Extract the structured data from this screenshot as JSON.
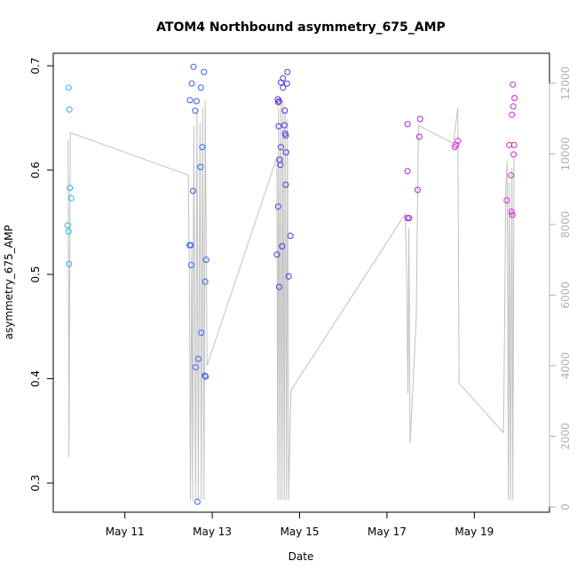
{
  "chart_data": {
    "type": "scatter",
    "title": "ATOM4 Northbound asymmetry_675_AMP",
    "xlabel": "Date",
    "ylabel": "asymmetry_675_AMP",
    "x_unit": "days (May 2024)",
    "xlim": [
      9.36,
      20.72
    ],
    "ylim": [
      0.272,
      0.712
    ],
    "y2lim": [
      -150,
      12850
    ],
    "x_ticks": [
      {
        "value": 11,
        "label": "May 11"
      },
      {
        "value": 13,
        "label": "May 13"
      },
      {
        "value": 15,
        "label": "May 15"
      },
      {
        "value": 17,
        "label": "May 17"
      },
      {
        "value": 19,
        "label": "May 19"
      }
    ],
    "y_ticks": [
      {
        "value": 0.3,
        "label": "0.3"
      },
      {
        "value": 0.4,
        "label": "0.4"
      },
      {
        "value": 0.5,
        "label": "0.5"
      },
      {
        "value": 0.6,
        "label": "0.6"
      },
      {
        "value": 0.7,
        "label": "0.7"
      }
    ],
    "y2_ticks": [
      {
        "value": 0,
        "label": "0"
      },
      {
        "value": 2000,
        "label": "2000"
      },
      {
        "value": 4000,
        "label": "4000"
      },
      {
        "value": 6000,
        "label": "6000"
      },
      {
        "value": 8000,
        "label": "8000"
      },
      {
        "value": 10000,
        "label": "10000"
      },
      {
        "value": 12000,
        "label": "12000"
      }
    ],
    "grid": false,
    "legend": "none",
    "point_series": [
      {
        "color": "#29b5e8",
        "points": [
          {
            "x": 9.71,
            "y": 0.679
          },
          {
            "x": 9.73,
            "y": 0.658
          },
          {
            "x": 9.74,
            "y": 0.583
          },
          {
            "x": 9.77,
            "y": 0.573
          },
          {
            "x": 9.69,
            "y": 0.547
          },
          {
            "x": 9.71,
            "y": 0.541
          },
          {
            "x": 9.72,
            "y": 0.51
          }
        ]
      },
      {
        "color": "#2f62f0",
        "points": [
          {
            "x": 12.57,
            "y": 0.699
          },
          {
            "x": 12.81,
            "y": 0.694
          },
          {
            "x": 12.53,
            "y": 0.683
          },
          {
            "x": 12.74,
            "y": 0.679
          },
          {
            "x": 12.49,
            "y": 0.667
          },
          {
            "x": 12.64,
            "y": 0.666
          },
          {
            "x": 12.61,
            "y": 0.657
          },
          {
            "x": 12.77,
            "y": 0.622
          },
          {
            "x": 12.73,
            "y": 0.603
          },
          {
            "x": 12.56,
            "y": 0.58
          },
          {
            "x": 12.48,
            "y": 0.528
          },
          {
            "x": 12.51,
            "y": 0.528
          },
          {
            "x": 12.86,
            "y": 0.514
          },
          {
            "x": 12.52,
            "y": 0.509
          },
          {
            "x": 12.84,
            "y": 0.493
          },
          {
            "x": 12.75,
            "y": 0.444
          },
          {
            "x": 12.68,
            "y": 0.419
          },
          {
            "x": 12.62,
            "y": 0.411
          },
          {
            "x": 12.83,
            "y": 0.403
          },
          {
            "x": 12.85,
            "y": 0.402
          },
          {
            "x": 12.66,
            "y": 0.282
          }
        ]
      },
      {
        "color": "#5a2ee0",
        "points": [
          {
            "x": 14.72,
            "y": 0.694
          },
          {
            "x": 14.62,
            "y": 0.688
          },
          {
            "x": 14.57,
            "y": 0.684
          },
          {
            "x": 14.71,
            "y": 0.683
          },
          {
            "x": 14.62,
            "y": 0.679
          },
          {
            "x": 14.5,
            "y": 0.668
          },
          {
            "x": 14.53,
            "y": 0.666
          },
          {
            "x": 14.51,
            "y": 0.665
          },
          {
            "x": 14.66,
            "y": 0.657
          },
          {
            "x": 14.52,
            "y": 0.642
          },
          {
            "x": 14.65,
            "y": 0.643
          },
          {
            "x": 14.67,
            "y": 0.635
          },
          {
            "x": 14.68,
            "y": 0.633
          },
          {
            "x": 14.57,
            "y": 0.622
          },
          {
            "x": 14.69,
            "y": 0.617
          },
          {
            "x": 14.54,
            "y": 0.61
          },
          {
            "x": 14.56,
            "y": 0.605
          },
          {
            "x": 14.68,
            "y": 0.586
          },
          {
            "x": 14.51,
            "y": 0.565
          },
          {
            "x": 14.79,
            "y": 0.537
          },
          {
            "x": 14.6,
            "y": 0.527
          },
          {
            "x": 14.48,
            "y": 0.519
          },
          {
            "x": 14.75,
            "y": 0.498
          },
          {
            "x": 14.53,
            "y": 0.488
          }
        ]
      },
      {
        "color": "#9b27d8",
        "points": [
          {
            "x": 17.47,
            "y": 0.644
          },
          {
            "x": 17.47,
            "y": 0.599
          },
          {
            "x": 17.47,
            "y": 0.554
          },
          {
            "x": 17.51,
            "y": 0.554
          },
          {
            "x": 17.7,
            "y": 0.581
          },
          {
            "x": 17.76,
            "y": 0.649
          },
          {
            "x": 17.74,
            "y": 0.632
          }
        ]
      },
      {
        "color": "#d224d8",
        "points": [
          {
            "x": 18.55,
            "y": 0.622
          },
          {
            "x": 18.58,
            "y": 0.624
          },
          {
            "x": 18.62,
            "y": 0.628
          },
          {
            "x": 19.8,
            "y": 0.624
          },
          {
            "x": 19.91,
            "y": 0.624
          },
          {
            "x": 19.88,
            "y": 0.682
          },
          {
            "x": 19.92,
            "y": 0.669
          },
          {
            "x": 19.89,
            "y": 0.661
          },
          {
            "x": 19.86,
            "y": 0.653
          },
          {
            "x": 19.9,
            "y": 0.615
          },
          {
            "x": 19.84,
            "y": 0.595
          },
          {
            "x": 19.74,
            "y": 0.571
          },
          {
            "x": 19.85,
            "y": 0.56
          },
          {
            "x": 19.87,
            "y": 0.557
          }
        ]
      }
    ],
    "secondary_line": {
      "color": "#c0c0c0",
      "axis": "right",
      "points": [
        [
          9.7,
          10400
        ],
        [
          9.72,
          1400
        ],
        [
          9.75,
          10600
        ],
        [
          12.45,
          9400
        ],
        [
          12.48,
          6200
        ],
        [
          12.5,
          200
        ],
        [
          12.53,
          7400
        ],
        [
          12.55,
          200
        ],
        [
          12.58,
          10800
        ],
        [
          12.62,
          200
        ],
        [
          12.65,
          11200
        ],
        [
          12.68,
          200
        ],
        [
          12.72,
          10900
        ],
        [
          12.75,
          200
        ],
        [
          12.78,
          11300
        ],
        [
          12.81,
          200
        ],
        [
          12.84,
          11500
        ],
        [
          12.88,
          4000
        ],
        [
          14.48,
          9900
        ],
        [
          14.5,
          200
        ],
        [
          14.52,
          11300
        ],
        [
          14.55,
          200
        ],
        [
          14.57,
          11600
        ],
        [
          14.6,
          200
        ],
        [
          14.62,
          11500
        ],
        [
          14.65,
          200
        ],
        [
          14.67,
          11200
        ],
        [
          14.7,
          200
        ],
        [
          14.72,
          11000
        ],
        [
          14.75,
          200
        ],
        [
          14.8,
          3300
        ],
        [
          17.42,
          8300
        ],
        [
          17.45,
          6600
        ],
        [
          17.48,
          3200
        ],
        [
          17.5,
          7900
        ],
        [
          17.53,
          1800
        ],
        [
          17.67,
          5300
        ],
        [
          17.72,
          10800
        ],
        [
          18.52,
          10300
        ],
        [
          18.62,
          11300
        ],
        [
          18.65,
          3500
        ],
        [
          19.67,
          2100
        ],
        [
          19.72,
          9100
        ],
        [
          19.75,
          9800
        ],
        [
          19.78,
          200
        ],
        [
          19.8,
          9200
        ],
        [
          19.83,
          200
        ],
        [
          19.86,
          9600
        ],
        [
          19.88,
          200
        ],
        [
          19.91,
          9900
        ]
      ]
    }
  }
}
